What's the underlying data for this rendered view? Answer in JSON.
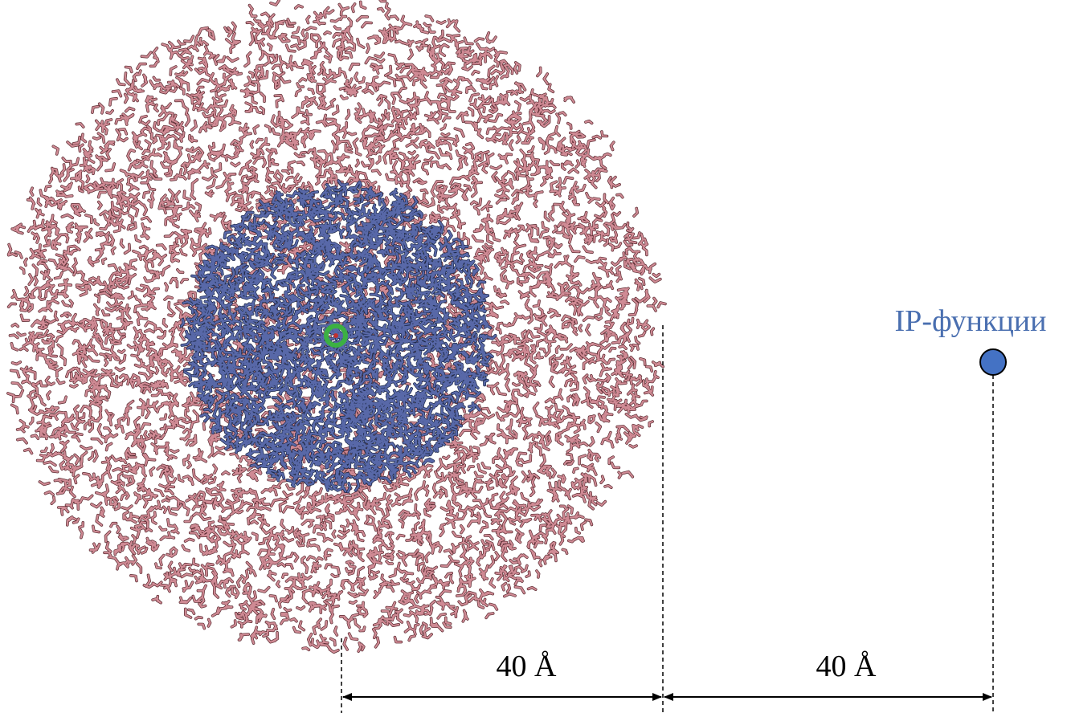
{
  "labels": {
    "ip_functions": "IP-функции",
    "distance_left": "40 Å",
    "distance_right": "40 Å"
  }
}
